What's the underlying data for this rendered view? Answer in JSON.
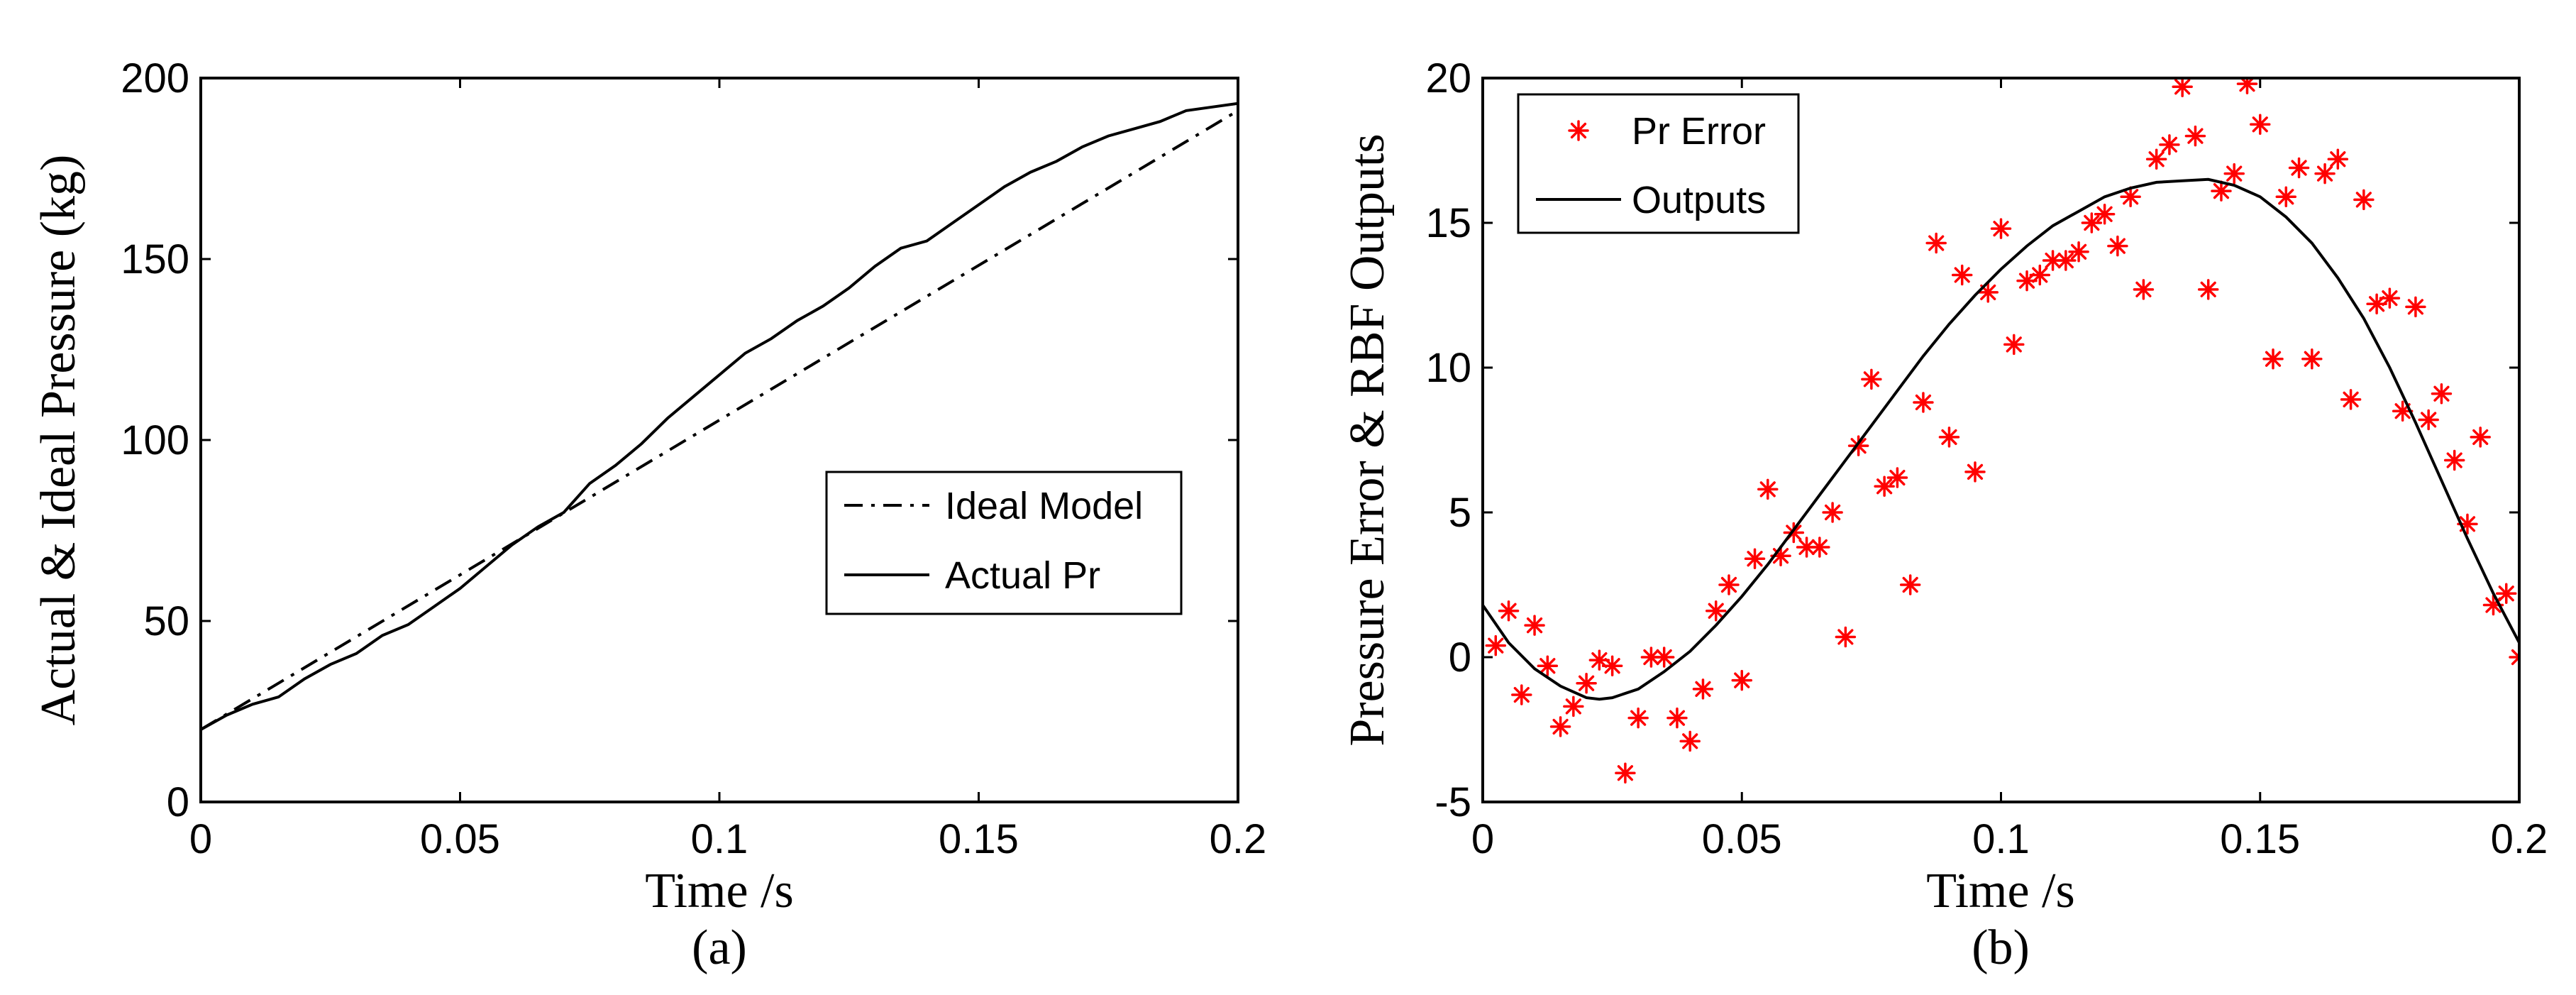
{
  "chart_data": [
    {
      "type": "line",
      "panel_label": "(a)",
      "xlabel": "Time /s",
      "ylabel": "Actual & Ideal Pressure (kg)",
      "xlim": [
        0,
        0.2
      ],
      "ylim": [
        0,
        200
      ],
      "xticks": [
        0,
        0.05,
        0.1,
        0.15,
        0.2
      ],
      "xtick_labels": [
        "0",
        "0.05",
        "0.1",
        "0.15",
        "0.2"
      ],
      "yticks": [
        0,
        50,
        100,
        150,
        200
      ],
      "ytick_labels": [
        "0",
        "50",
        "100",
        "150",
        "200"
      ],
      "legend_position": "lower-right",
      "series": [
        {
          "name": "Ideal Model",
          "style": "dash-dot",
          "x": [
            0,
            0.2
          ],
          "y": [
            20,
            191
          ]
        },
        {
          "name": "Actual Pr",
          "style": "solid",
          "x": [
            0,
            0.005,
            0.01,
            0.015,
            0.02,
            0.025,
            0.03,
            0.035,
            0.04,
            0.045,
            0.05,
            0.055,
            0.06,
            0.065,
            0.07,
            0.075,
            0.08,
            0.085,
            0.09,
            0.095,
            0.1,
            0.105,
            0.11,
            0.115,
            0.12,
            0.125,
            0.13,
            0.135,
            0.14,
            0.145,
            0.15,
            0.155,
            0.16,
            0.165,
            0.17,
            0.175,
            0.18,
            0.185,
            0.19,
            0.195,
            0.2
          ],
          "y": [
            20,
            24,
            27,
            29,
            34,
            38,
            41,
            46,
            49,
            54,
            59,
            65,
            71,
            76,
            80,
            88,
            93,
            99,
            106,
            112,
            118,
            124,
            128,
            133,
            137,
            142,
            148,
            153,
            155,
            160,
            165,
            170,
            174,
            177,
            181,
            184,
            186,
            188,
            191,
            192,
            193
          ]
        }
      ]
    },
    {
      "type": "scatter",
      "panel_label": "(b)",
      "xlabel": "Time /s",
      "ylabel": "Pressure Error & RBF Outputs",
      "xlim": [
        0,
        0.2
      ],
      "ylim": [
        -5,
        20
      ],
      "xticks": [
        0,
        0.05,
        0.1,
        0.15,
        0.2
      ],
      "xtick_labels": [
        "0",
        "0.05",
        "0.1",
        "0.15",
        "0.2"
      ],
      "yticks": [
        -5,
        0,
        5,
        10,
        15,
        20
      ],
      "ytick_labels": [
        "-5",
        "0",
        "5",
        "10",
        "15",
        "20"
      ],
      "legend_position": "top-left",
      "series": [
        {
          "name": "Pr Error",
          "style": "red-asterisk",
          "x": [
            0.0025,
            0.005,
            0.0075,
            0.01,
            0.0125,
            0.015,
            0.0175,
            0.02,
            0.0225,
            0.025,
            0.0275,
            0.03,
            0.0325,
            0.035,
            0.0375,
            0.04,
            0.0425,
            0.045,
            0.0475,
            0.05,
            0.0525,
            0.055,
            0.0575,
            0.06,
            0.0625,
            0.065,
            0.0675,
            0.07,
            0.0725,
            0.075,
            0.0775,
            0.08,
            0.0825,
            0.085,
            0.0875,
            0.09,
            0.0925,
            0.095,
            0.0975,
            0.1,
            0.1025,
            0.105,
            0.1075,
            0.11,
            0.1125,
            0.115,
            0.1175,
            0.12,
            0.1225,
            0.125,
            0.1275,
            0.13,
            0.1325,
            0.135,
            0.1375,
            0.14,
            0.1425,
            0.145,
            0.1475,
            0.15,
            0.1525,
            0.155,
            0.1575,
            0.16,
            0.1625,
            0.165,
            0.1675,
            0.17,
            0.1725,
            0.175,
            0.1775,
            0.18,
            0.1825,
            0.185,
            0.1875,
            0.19,
            0.1925,
            0.195,
            0.1975,
            0.2
          ],
          "y": [
            0.4,
            1.6,
            -1.3,
            1.1,
            -0.3,
            -2.4,
            -1.7,
            -0.9,
            -0.1,
            -0.3,
            -4.0,
            -2.1,
            0.0,
            0.0,
            -2.1,
            -2.9,
            -1.1,
            1.6,
            2.5,
            -0.8,
            3.4,
            5.8,
            3.5,
            4.3,
            3.8,
            3.8,
            5.0,
            0.7,
            7.3,
            9.6,
            5.9,
            6.2,
            2.5,
            8.8,
            14.3,
            7.6,
            13.2,
            6.4,
            12.6,
            14.8,
            10.8,
            13.0,
            13.2,
            13.7,
            13.7,
            14.0,
            15.0,
            15.3,
            14.2,
            15.9,
            12.7,
            17.2,
            17.7,
            19.7,
            18.0,
            12.7,
            16.1,
            16.7,
            19.8,
            18.4,
            10.3,
            15.9,
            16.9,
            10.3,
            16.7,
            17.2,
            8.9,
            15.8,
            12.2,
            12.4,
            8.5,
            12.1,
            8.2,
            9.1,
            6.8,
            4.6,
            7.6,
            1.8,
            2.2,
            0.0
          ]
        },
        {
          "name": "Outputs",
          "style": "solid",
          "x": [
            0,
            0.005,
            0.01,
            0.015,
            0.02,
            0.0225,
            0.025,
            0.03,
            0.035,
            0.04,
            0.045,
            0.05,
            0.055,
            0.06,
            0.065,
            0.07,
            0.075,
            0.08,
            0.085,
            0.09,
            0.095,
            0.1,
            0.105,
            0.11,
            0.115,
            0.12,
            0.125,
            0.13,
            0.135,
            0.14,
            0.145,
            0.15,
            0.155,
            0.16,
            0.165,
            0.17,
            0.175,
            0.18,
            0.185,
            0.19,
            0.195,
            0.2
          ],
          "y": [
            1.8,
            0.5,
            -0.4,
            -1.0,
            -1.4,
            -1.45,
            -1.4,
            -1.1,
            -0.5,
            0.2,
            1.1,
            2.1,
            3.2,
            4.4,
            5.6,
            6.8,
            8.0,
            9.2,
            10.4,
            11.5,
            12.5,
            13.4,
            14.2,
            14.9,
            15.4,
            15.9,
            16.2,
            16.4,
            16.45,
            16.5,
            16.3,
            15.9,
            15.2,
            14.3,
            13.1,
            11.7,
            10.0,
            8.1,
            6.1,
            4.1,
            2.2,
            0.5
          ]
        }
      ]
    }
  ]
}
